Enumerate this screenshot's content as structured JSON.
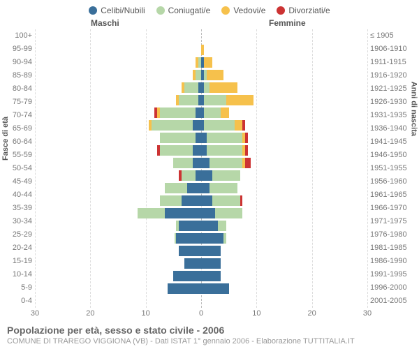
{
  "legend": [
    {
      "label": "Celibi/Nubili",
      "color": "#3a6f9a"
    },
    {
      "label": "Coniugati/e",
      "color": "#b6d7a8"
    },
    {
      "label": "Vedovi/e",
      "color": "#f6c14c"
    },
    {
      "label": "Divorziati/e",
      "color": "#cc3333"
    }
  ],
  "headers": {
    "male": "Maschi",
    "female": "Femmine",
    "years_hint": "≤ 1905"
  },
  "axis_left_title": "Fasce di età",
  "axis_right_title": "Anni di nascita",
  "x_ticks": [
    30,
    20,
    10,
    0,
    10,
    20,
    30
  ],
  "x_max": 30,
  "title": "Popolazione per età, sesso e stato civile - 2006",
  "subtitle": "COMUNE DI TRAREGO VIGGIONA (VB) - Dati ISTAT 1° gennaio 2006 - Elaborazione TUTTITALIA.IT",
  "colors": {
    "celibi": "#3a6f9a",
    "coniugati": "#b6d7a8",
    "vedovi": "#f6c14c",
    "divorziati": "#cc3333",
    "grid": "#dddddd",
    "center": "#bbbbbb",
    "bg": "#ffffff"
  },
  "rows": [
    {
      "age": "100+",
      "birth": "≤ 1905",
      "m": {
        "c": 0,
        "co": 0,
        "v": 0,
        "d": 0
      },
      "f": {
        "c": 0,
        "co": 0,
        "v": 0,
        "d": 0
      }
    },
    {
      "age": "95-99",
      "birth": "1906-1910",
      "m": {
        "c": 0,
        "co": 0,
        "v": 0,
        "d": 0
      },
      "f": {
        "c": 0,
        "co": 0,
        "v": 1,
        "d": 0
      }
    },
    {
      "age": "90-94",
      "birth": "1911-1915",
      "m": {
        "c": 0,
        "co": 1,
        "v": 1,
        "d": 0
      },
      "f": {
        "c": 1,
        "co": 0,
        "v": 3,
        "d": 0
      }
    },
    {
      "age": "85-89",
      "birth": "1916-1920",
      "m": {
        "c": 0,
        "co": 2,
        "v": 1,
        "d": 0
      },
      "f": {
        "c": 1,
        "co": 1,
        "v": 6,
        "d": 0
      }
    },
    {
      "age": "80-84",
      "birth": "1921-1925",
      "m": {
        "c": 1,
        "co": 5,
        "v": 1,
        "d": 0
      },
      "f": {
        "c": 1,
        "co": 2,
        "v": 10,
        "d": 0
      }
    },
    {
      "age": "75-79",
      "birth": "1926-1930",
      "m": {
        "c": 1,
        "co": 7,
        "v": 1,
        "d": 0
      },
      "f": {
        "c": 1,
        "co": 8,
        "v": 10,
        "d": 0
      }
    },
    {
      "age": "70-74",
      "birth": "1931-1935",
      "m": {
        "c": 2,
        "co": 13,
        "v": 1,
        "d": 1
      },
      "f": {
        "c": 1,
        "co": 6,
        "v": 3,
        "d": 0
      }
    },
    {
      "age": "65-69",
      "birth": "1936-1940",
      "m": {
        "c": 3,
        "co": 15,
        "v": 1,
        "d": 0
      },
      "f": {
        "c": 1,
        "co": 11,
        "v": 3,
        "d": 1
      }
    },
    {
      "age": "60-64",
      "birth": "1941-1945",
      "m": {
        "c": 2,
        "co": 13,
        "v": 0,
        "d": 0
      },
      "f": {
        "c": 2,
        "co": 13,
        "v": 1,
        "d": 1
      }
    },
    {
      "age": "55-59",
      "birth": "1946-1950",
      "m": {
        "c": 3,
        "co": 12,
        "v": 0,
        "d": 1
      },
      "f": {
        "c": 2,
        "co": 13,
        "v": 1,
        "d": 1
      }
    },
    {
      "age": "50-54",
      "birth": "1951-1955",
      "m": {
        "c": 3,
        "co": 7,
        "v": 0,
        "d": 0
      },
      "f": {
        "c": 3,
        "co": 12,
        "v": 1,
        "d": 2
      }
    },
    {
      "age": "45-49",
      "birth": "1956-1960",
      "m": {
        "c": 2,
        "co": 5,
        "v": 0,
        "d": 1
      },
      "f": {
        "c": 4,
        "co": 10,
        "v": 0,
        "d": 0
      }
    },
    {
      "age": "40-44",
      "birth": "1961-1965",
      "m": {
        "c": 5,
        "co": 8,
        "v": 0,
        "d": 0
      },
      "f": {
        "c": 3,
        "co": 10,
        "v": 0,
        "d": 0
      }
    },
    {
      "age": "35-39",
      "birth": "1966-1970",
      "m": {
        "c": 7,
        "co": 8,
        "v": 0,
        "d": 0
      },
      "f": {
        "c": 4,
        "co": 10,
        "v": 0,
        "d": 1
      }
    },
    {
      "age": "30-34",
      "birth": "1971-1975",
      "m": {
        "c": 13,
        "co": 10,
        "v": 0,
        "d": 0
      },
      "f": {
        "c": 5,
        "co": 10,
        "v": 0,
        "d": 0
      }
    },
    {
      "age": "25-29",
      "birth": "1976-1980",
      "m": {
        "c": 8,
        "co": 1,
        "v": 0,
        "d": 0
      },
      "f": {
        "c": 6,
        "co": 3,
        "v": 0,
        "d": 0
      }
    },
    {
      "age": "20-24",
      "birth": "1981-1985",
      "m": {
        "c": 9,
        "co": 0.5,
        "v": 0,
        "d": 0
      },
      "f": {
        "c": 8,
        "co": 1,
        "v": 0,
        "d": 0
      }
    },
    {
      "age": "15-19",
      "birth": "1986-1990",
      "m": {
        "c": 8,
        "co": 0,
        "v": 0,
        "d": 0
      },
      "f": {
        "c": 7,
        "co": 0,
        "v": 0,
        "d": 0
      }
    },
    {
      "age": "10-14",
      "birth": "1991-1995",
      "m": {
        "c": 6,
        "co": 0,
        "v": 0,
        "d": 0
      },
      "f": {
        "c": 7,
        "co": 0,
        "v": 0,
        "d": 0
      }
    },
    {
      "age": "5-9",
      "birth": "1996-2000",
      "m": {
        "c": 10,
        "co": 0,
        "v": 0,
        "d": 0
      },
      "f": {
        "c": 7,
        "co": 0,
        "v": 0,
        "d": 0
      }
    },
    {
      "age": "0-4",
      "birth": "2001-2005",
      "m": {
        "c": 12,
        "co": 0,
        "v": 0,
        "d": 0
      },
      "f": {
        "c": 10,
        "co": 0,
        "v": 0,
        "d": 0
      }
    }
  ]
}
